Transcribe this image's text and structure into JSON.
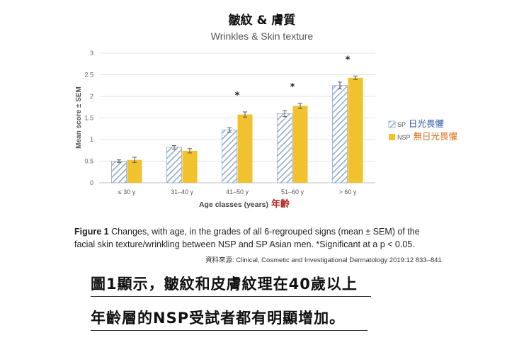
{
  "chart_data": {
    "type": "bar",
    "title": "皺紋 & 膚質",
    "subtitle": "Wrinkles & Skin texture",
    "xlabel": "Age classes (years)",
    "xlabel_cn": "年齡",
    "ylabel": "Mean score ± SEM",
    "ylim": [
      0,
      3
    ],
    "yticks": [
      "0",
      "0.5",
      "1",
      "1.5",
      "2",
      "2.5",
      "3"
    ],
    "grid": true,
    "legend_position": "right",
    "categories": [
      "≤ 30 y",
      "31–40 y",
      "41–50 y",
      "51–60 y",
      "> 60 y"
    ],
    "series": [
      {
        "name": "SP",
        "name_cn": "日光畏懼",
        "color": "#8fa7cf",
        "pattern": "hatched",
        "values": [
          0.5,
          0.82,
          1.22,
          1.6,
          2.25
        ],
        "errors": [
          0.03,
          0.04,
          0.05,
          0.07,
          0.08
        ]
      },
      {
        "name": "NSP",
        "name_cn": "無日光畏懼",
        "color": "#f2c12e",
        "pattern": "solid",
        "values": [
          0.53,
          0.74,
          1.58,
          1.78,
          2.43
        ],
        "errors": [
          0.06,
          0.05,
          0.06,
          0.06,
          0.04
        ]
      }
    ],
    "annotations": [
      "",
      "",
      "*",
      "*",
      "*"
    ]
  },
  "caption": {
    "label": "Figure 1",
    "text": " Changes, with age, in the grades of all 6-regrouped signs (mean ± SEM) of the facial skin texture/wrinkling between NSP and SP Asian men. *Significant at a p < 0.05."
  },
  "source": "資料來源: Clinical, Cosmetic and Investigational Dermatology 2019:12 833–841",
  "notes": [
    "圖1顯示，皺紋和皮膚紋理在40歲以上",
    "年齡層的NSP受試者都有明顯增加。"
  ]
}
